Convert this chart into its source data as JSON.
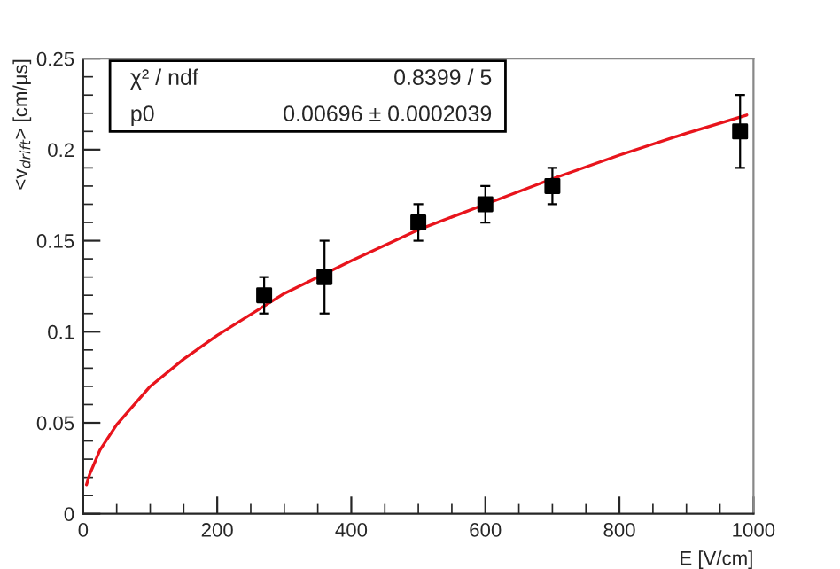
{
  "chart_data": {
    "type": "scatter",
    "xlabel": "E [V/cm]",
    "ylabel": "<v$_{drift}$> [cm/μs]",
    "series": [
      {
        "color": "#000000",
        "marker": "square",
        "x": [
          270,
          360,
          500,
          600,
          700,
          980
        ],
        "values": [
          0.12,
          0.13,
          0.16,
          0.17,
          0.18,
          0.21
        ],
        "errors": [
          0.01,
          0.02,
          0.01,
          0.01,
          0.01,
          0.02
        ]
      },
      {
        "type": "line",
        "color": "#e8141c",
        "marker": "none",
        "x": [
          5,
          10,
          25,
          50,
          100,
          150,
          200,
          300,
          400,
          500,
          600,
          700,
          800,
          900,
          990
        ],
        "values": [
          0.016,
          0.022,
          0.035,
          0.049,
          0.07,
          0.085,
          0.098,
          0.121,
          0.139,
          0.156,
          0.17,
          0.184,
          0.197,
          0.209,
          0.219
        ]
      }
    ],
    "annotations": [
      "χ² / ndf",
      "0.8399 / 5",
      "p0",
      "0.00696 ± 0.0002039"
    ],
    "xlim": [
      0,
      1000
    ],
    "xticks": [
      0,
      200,
      400,
      600,
      800,
      1000
    ],
    "ylim": [
      0,
      0.25
    ],
    "yticks": [
      0,
      0.05,
      0.1,
      0.15,
      0.2,
      0.25
    ],
    "grid": false,
    "legend": false
  }
}
